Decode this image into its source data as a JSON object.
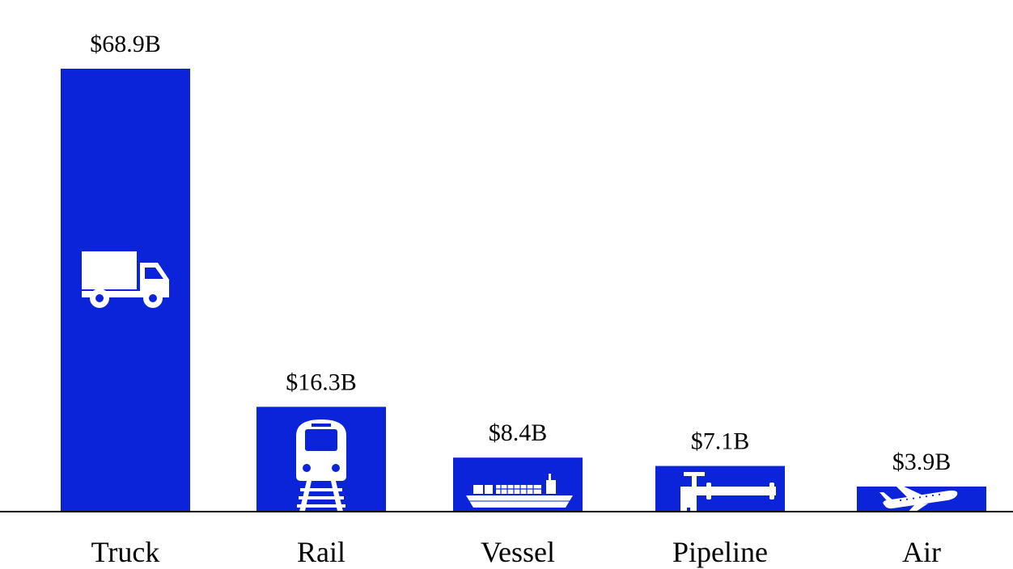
{
  "chart_data": {
    "type": "bar",
    "title": "",
    "xlabel": "",
    "ylabel": "",
    "categories": [
      "Truck",
      "Rail",
      "Vessel",
      "Pipeline",
      "Air"
    ],
    "values": [
      68.9,
      16.3,
      8.4,
      7.1,
      3.9
    ],
    "value_labels": [
      "$68.9B",
      "$16.3B",
      "$8.4B",
      "$7.1B",
      "$3.9B"
    ],
    "icons": [
      "truck-icon",
      "train-icon",
      "ship-icon",
      "pipeline-icon",
      "airplane-icon"
    ],
    "ylim": [
      0,
      68.9
    ],
    "grid": false,
    "legend": "none",
    "colors": {
      "bar": "#0b24da",
      "icon": "#ffffff",
      "axis": "#000000",
      "background": "#ffffff"
    }
  }
}
